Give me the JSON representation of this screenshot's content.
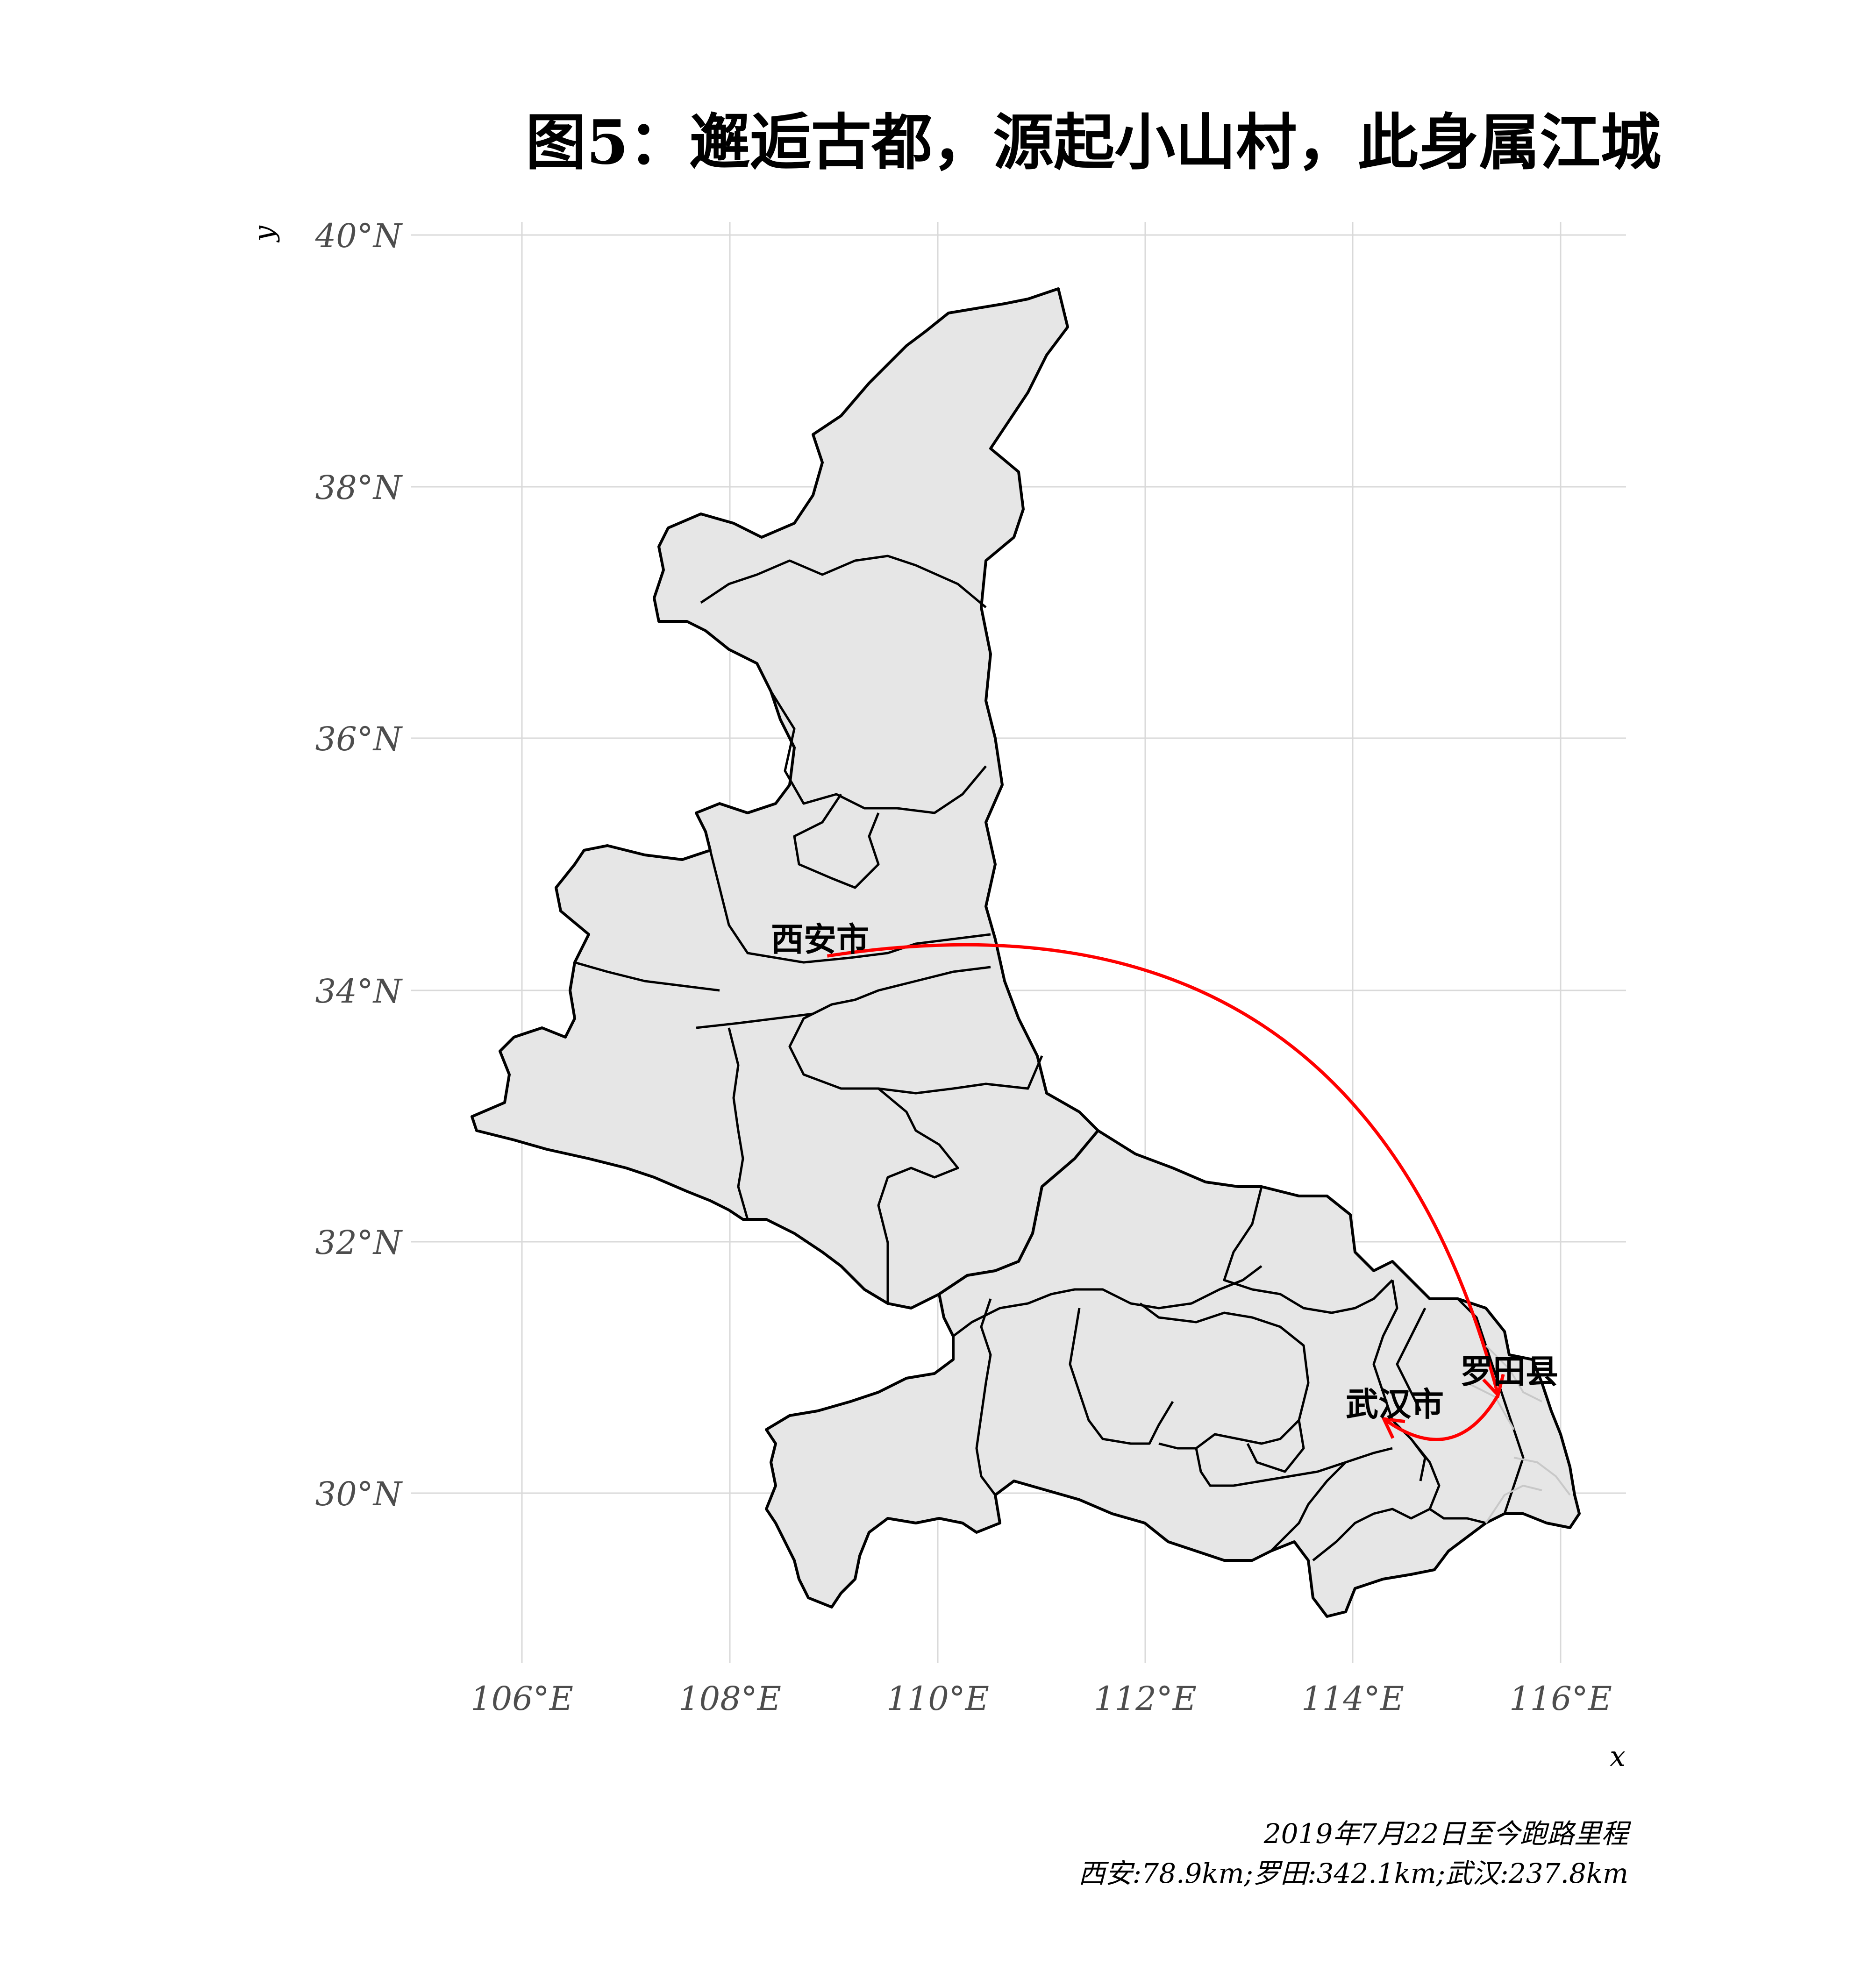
{
  "title": "图5：邂逅古都，源起小山村，此身属江城",
  "axes": {
    "xlabel": "x",
    "ylabel": "y",
    "x_ticks": [
      "106°E",
      "108°E",
      "110°E",
      "112°E",
      "114°E",
      "116°E"
    ],
    "y_ticks": [
      "30°N",
      "32°N",
      "34°N",
      "36°N",
      "38°N",
      "40°N"
    ]
  },
  "cities": [
    {
      "name": "西安市",
      "lon": 108.94,
      "lat": 34.27
    },
    {
      "name": "罗田县",
      "lon": 115.4,
      "lat": 30.78
    },
    {
      "name": "武汉市",
      "lon": 114.3,
      "lat": 30.59
    }
  ],
  "route": {
    "color": "#ff0000",
    "legs": [
      {
        "from": "西安市",
        "to": "罗田县"
      },
      {
        "from": "罗田县",
        "to": "武汉市"
      }
    ]
  },
  "caption": {
    "line1": "2019年7月22日至今跑路里程",
    "line2": "西安:78.9km;罗田:342.1km;武汉:237.8km"
  },
  "colors": {
    "region_fill": "#e6e6e6",
    "region_stroke": "#000000",
    "route": "#ff0000",
    "grid": "#d9d9d9"
  }
}
